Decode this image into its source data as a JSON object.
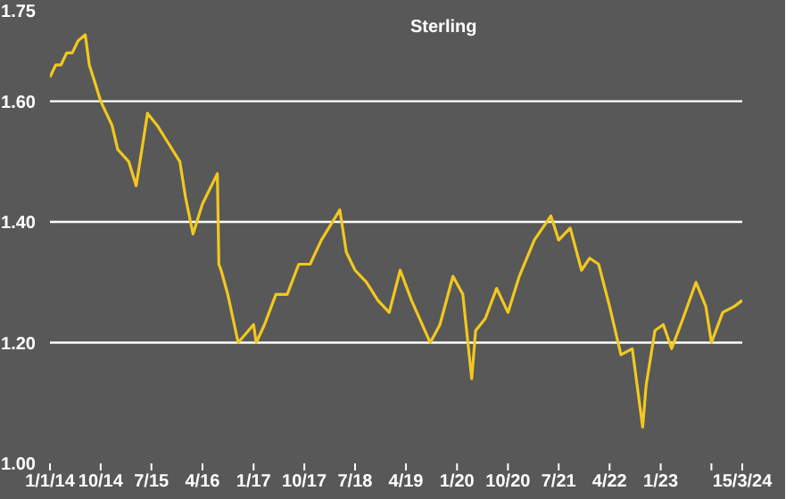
{
  "chart_data": {
    "type": "line",
    "title": "Sterling",
    "x": [
      "2014-01-01",
      "2014-02-01",
      "2014-03-01",
      "2014-04-01",
      "2014-05-01",
      "2014-06-01",
      "2014-07-10",
      "2014-08-01",
      "2014-09-01",
      "2014-10-01",
      "2014-12-01",
      "2015-01-01",
      "2015-03-01",
      "2015-04-10",
      "2015-06-10",
      "2015-08-01",
      "2015-10-01",
      "2015-12-01",
      "2016-01-01",
      "2016-02-10",
      "2016-04-01",
      "2016-06-20",
      "2016-06-28",
      "2016-07-10",
      "2016-08-15",
      "2016-10-10",
      "2017-01-01",
      "2017-01-15",
      "2017-03-01",
      "2017-05-01",
      "2017-07-01",
      "2017-09-01",
      "2017-11-01",
      "2018-01-01",
      "2018-04-10",
      "2018-05-15",
      "2018-07-01",
      "2018-09-01",
      "2018-11-01",
      "2019-01-01",
      "2019-03-01",
      "2019-05-01",
      "2019-08-10",
      "2019-10-01",
      "2019-12-10",
      "2020-02-01",
      "2020-03-20",
      "2020-04-10",
      "2020-06-01",
      "2020-08-01",
      "2020-10-01",
      "2020-12-01",
      "2021-02-20",
      "2021-05-20",
      "2021-07-01",
      "2021-09-01",
      "2021-11-01",
      "2021-12-15",
      "2022-02-01",
      "2022-04-01",
      "2022-06-01",
      "2022-08-01",
      "2022-09-26",
      "2022-10-15",
      "2022-12-01",
      "2023-01-15",
      "2023-03-01",
      "2023-05-01",
      "2023-07-10",
      "2023-09-01",
      "2023-10-01",
      "2023-12-01",
      "2024-02-01",
      "2024-03-15"
    ],
    "series": [
      {
        "color": "#f2c81e",
        "values": [
          1.64,
          1.66,
          1.66,
          1.68,
          1.68,
          1.7,
          1.71,
          1.66,
          1.63,
          1.6,
          1.56,
          1.52,
          1.5,
          1.46,
          1.58,
          1.56,
          1.53,
          1.5,
          1.44,
          1.38,
          1.43,
          1.48,
          1.33,
          1.32,
          1.28,
          1.2,
          1.23,
          1.2,
          1.23,
          1.28,
          1.28,
          1.33,
          1.33,
          1.37,
          1.42,
          1.35,
          1.32,
          1.3,
          1.27,
          1.25,
          1.32,
          1.27,
          1.2,
          1.23,
          1.31,
          1.28,
          1.14,
          1.22,
          1.24,
          1.29,
          1.25,
          1.31,
          1.37,
          1.41,
          1.37,
          1.39,
          1.32,
          1.34,
          1.33,
          1.26,
          1.18,
          1.19,
          1.06,
          1.13,
          1.22,
          1.23,
          1.19,
          1.24,
          1.3,
          1.26,
          1.2,
          1.25,
          1.26,
          1.27
        ]
      }
    ],
    "xlim": [
      "2014-01-01",
      "2024-03-15"
    ],
    "xticks": [
      {
        "value": "2014-01-01",
        "label": "1/1/14"
      },
      {
        "value": "2014-10-01",
        "label": "10/14"
      },
      {
        "value": "2015-07-01",
        "label": "7/15"
      },
      {
        "value": "2016-04-01",
        "label": "4/16"
      },
      {
        "value": "2017-01-01",
        "label": "1/17"
      },
      {
        "value": "2017-10-01",
        "label": "10/17"
      },
      {
        "value": "2018-07-01",
        "label": "7/18"
      },
      {
        "value": "2019-04-01",
        "label": "4/19"
      },
      {
        "value": "2020-01-01",
        "label": "1/20"
      },
      {
        "value": "2020-10-01",
        "label": "10/20"
      },
      {
        "value": "2021-07-01",
        "label": "7/21"
      },
      {
        "value": "2022-04-01",
        "label": "4/22"
      },
      {
        "value": "2023-01-01",
        "label": "1/23"
      },
      {
        "value": "2023-10-01",
        "label": null
      },
      {
        "value": "2024-03-15",
        "label": "15/3/24"
      }
    ],
    "ylim": [
      1.0,
      1.75
    ],
    "yticks": [
      {
        "value": 1.0,
        "label": "1.00"
      },
      {
        "value": 1.2,
        "label": "1.20"
      },
      {
        "value": 1.4,
        "label": "1.40"
      },
      {
        "value": 1.6,
        "label": "1.60"
      },
      {
        "value": 1.75,
        "label": "1.75"
      }
    ],
    "grid": "y",
    "marker": "none",
    "line_style": "solid"
  }
}
